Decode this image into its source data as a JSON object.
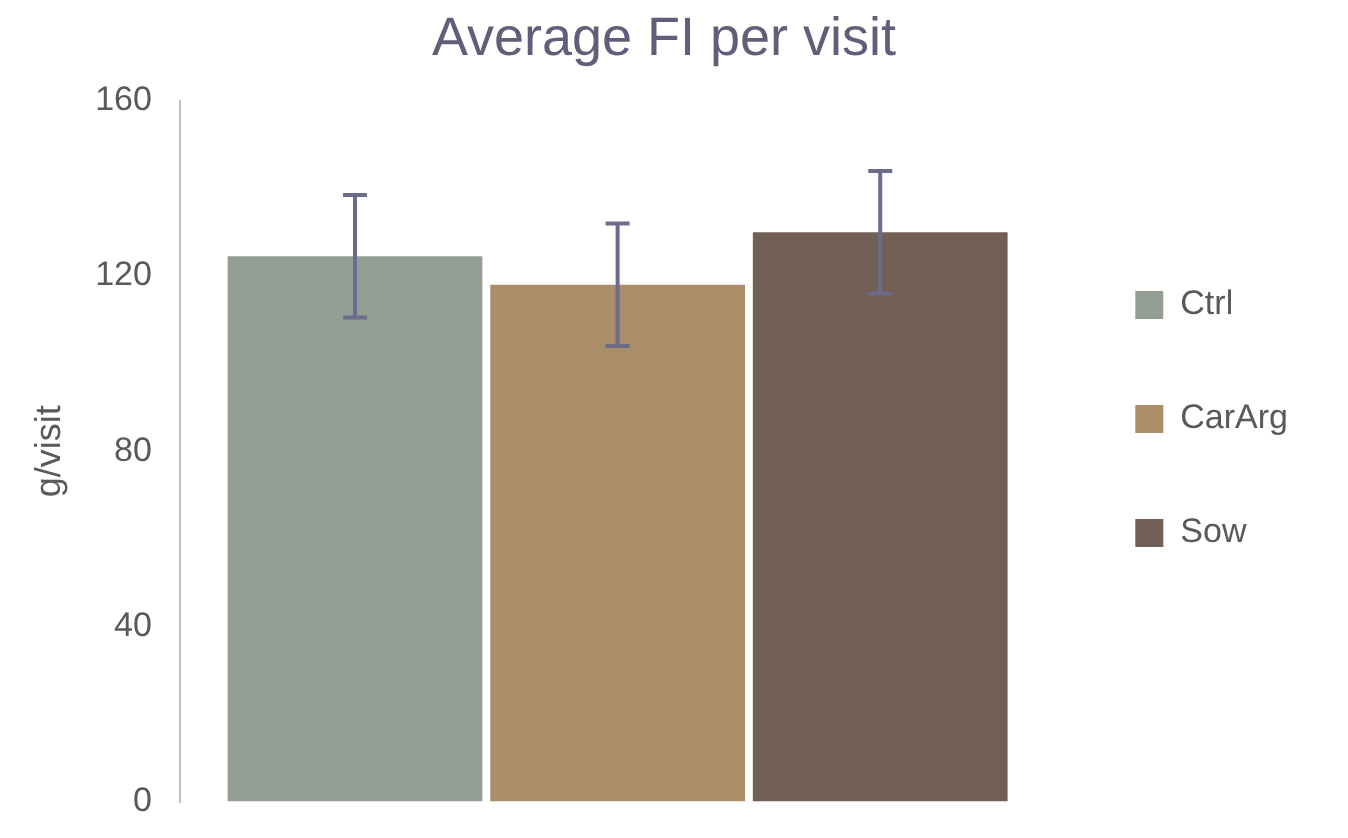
{
  "chart_data": {
    "type": "bar",
    "title": "Average FI per visit",
    "ylabel": "g/visit",
    "categories": [
      null
    ],
    "series": [
      {
        "name": "Ctrl",
        "color": "#939f94",
        "values": [
          124.5
        ],
        "errors": [
          14
        ]
      },
      {
        "name": "CarArg",
        "color": "#ab8e67",
        "values": [
          118
        ],
        "errors": [
          14
        ]
      },
      {
        "name": "Sow",
        "color": "#725f55",
        "values": [
          130
        ],
        "errors": [
          14
        ]
      }
    ],
    "ylim": [
      0,
      160
    ],
    "yticks": [
      0,
      40,
      80,
      120,
      160
    ],
    "grid": false,
    "legend": "right"
  }
}
